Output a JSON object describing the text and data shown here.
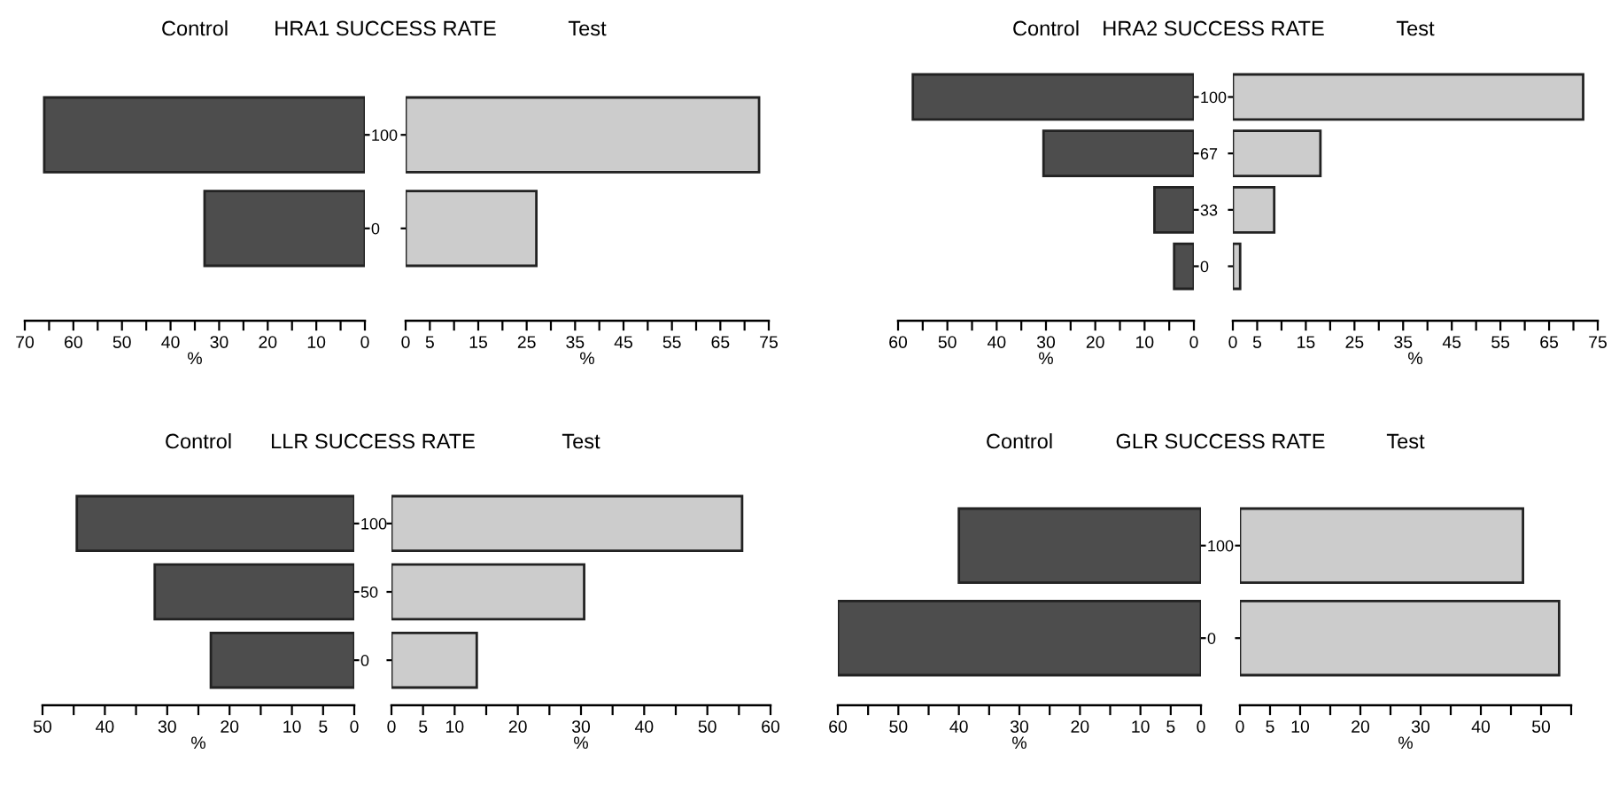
{
  "chart_data": [
    {
      "type": "bar",
      "orientation": "horizontal",
      "title": "Control",
      "annotations": [
        "HRA1 SUCCESS RATE"
      ],
      "xlabel": "%",
      "categories": [
        "100",
        "0"
      ],
      "values": [
        66,
        33
      ],
      "color": "#4d4d4d",
      "xlim": [
        70,
        0
      ],
      "xticks": [
        70,
        {
          "value": 65,
          "label": null
        },
        60,
        {
          "value": 55,
          "label": null
        },
        50,
        {
          "value": 45,
          "label": null
        },
        40,
        {
          "value": 35,
          "label": null
        },
        30,
        {
          "value": 25,
          "label": null
        },
        20,
        {
          "value": 15,
          "label": null
        },
        10,
        {
          "value": 5,
          "label": null
        },
        0
      ]
    },
    {
      "type": "bar",
      "orientation": "horizontal",
      "title": "Test",
      "xlabel": "%",
      "categories": [
        null,
        null
      ],
      "values": [
        73,
        27
      ],
      "color": "#cccccc",
      "xlim": [
        0,
        75
      ],
      "tick_labels": "x",
      "xticks": [
        0,
        5,
        {
          "value": 10,
          "label": null
        },
        15,
        {
          "value": 20,
          "label": null
        },
        25,
        {
          "value": 30,
          "label": null
        },
        35,
        {
          "value": 40,
          "label": null
        },
        45,
        {
          "value": 50,
          "label": null
        },
        55,
        {
          "value": 60,
          "label": null
        },
        65,
        {
          "value": 70,
          "label": null
        },
        75
      ]
    },
    {
      "type": "bar",
      "orientation": "horizontal",
      "title": "Control",
      "annotations": [
        "HRA2 SUCCESS RATE"
      ],
      "xlabel": "%",
      "categories": [
        "100",
        "67",
        "33",
        "0"
      ],
      "values": [
        57,
        30.5,
        8,
        4
      ],
      "color": "#4d4d4d",
      "xlim": [
        60,
        0
      ],
      "xticks": [
        60,
        {
          "value": 55,
          "label": null
        },
        50,
        {
          "value": 45,
          "label": null
        },
        40,
        {
          "value": 35,
          "label": null
        },
        30,
        {
          "value": 25,
          "label": null
        },
        20,
        {
          "value": 15,
          "label": null
        },
        10,
        {
          "value": 5,
          "label": null
        },
        0
      ]
    },
    {
      "type": "bar",
      "orientation": "horizontal",
      "title": "Test",
      "xlabel": "%",
      "categories": [
        null,
        null,
        null,
        null
      ],
      "values": [
        72,
        18,
        8.5,
        1.5
      ],
      "color": "#cccccc",
      "xlim": [
        0,
        75
      ],
      "tick_labels": "x",
      "xticks": [
        0,
        5,
        {
          "value": 10,
          "label": null
        },
        15,
        {
          "value": 20,
          "label": null
        },
        25,
        {
          "value": 30,
          "label": null
        },
        35,
        {
          "value": 40,
          "label": null
        },
        45,
        {
          "value": 50,
          "label": null
        },
        55,
        {
          "value": 60,
          "label": null
        },
        65,
        {
          "value": 70,
          "label": null
        },
        75
      ]
    },
    {
      "type": "bar",
      "orientation": "horizontal",
      "title": "Control",
      "annotations": [
        "LLR SUCCESS RATE"
      ],
      "xlabel": "%",
      "categories": [
        "100",
        "50",
        "0"
      ],
      "values": [
        44.5,
        32,
        23
      ],
      "color": "#4d4d4d",
      "xlim": [
        50,
        0
      ],
      "xticks": [
        50,
        {
          "value": 45,
          "label": null
        },
        40,
        {
          "value": 35,
          "label": null
        },
        30,
        {
          "value": 25,
          "label": null
        },
        20,
        {
          "value": 15,
          "label": null
        },
        10,
        5,
        0
      ]
    },
    {
      "type": "bar",
      "orientation": "horizontal",
      "title": "Test",
      "xlabel": "%",
      "categories": [
        null,
        null,
        null
      ],
      "values": [
        55.5,
        30.5,
        13.5
      ],
      "color": "#cccccc",
      "xlim": [
        0,
        60
      ],
      "tick_labels": "x",
      "xticks": [
        0,
        5,
        10,
        {
          "value": 15,
          "label": null
        },
        20,
        {
          "value": 25,
          "label": null
        },
        30,
        {
          "value": 35,
          "label": null
        },
        40,
        {
          "value": 45,
          "label": null
        },
        50,
        {
          "value": 55,
          "label": null
        },
        60
      ]
    },
    {
      "type": "bar",
      "orientation": "horizontal",
      "title": "Control",
      "annotations": [
        "GLR SUCCESS RATE"
      ],
      "xlabel": "%",
      "categories": [
        "100",
        "0"
      ],
      "values": [
        40,
        60
      ],
      "color": "#4d4d4d",
      "xlim": [
        60,
        0
      ],
      "xticks": [
        60,
        {
          "value": 55,
          "label": null
        },
        50,
        {
          "value": 45,
          "label": null
        },
        40,
        {
          "value": 35,
          "label": null
        },
        30,
        {
          "value": 25,
          "label": null
        },
        20,
        {
          "value": 15,
          "label": null
        },
        10,
        5,
        0
      ]
    },
    {
      "type": "bar",
      "orientation": "horizontal",
      "title": "Test",
      "xlabel": "%",
      "categories": [
        "100",
        "0"
      ],
      "values": [
        47,
        53
      ],
      "color": "#cccccc",
      "xlim": [
        0,
        55
      ],
      "tick_labels": "x",
      "xticks": [
        0,
        5,
        10,
        {
          "value": 15,
          "label": null
        },
        20,
        {
          "value": 25,
          "label": null
        },
        30,
        {
          "value": 35,
          "label": null
        },
        40,
        {
          "value": 45,
          "label": null
        },
        50,
        {
          "value": 55,
          "label": null
        }
      ]
    }
  ]
}
